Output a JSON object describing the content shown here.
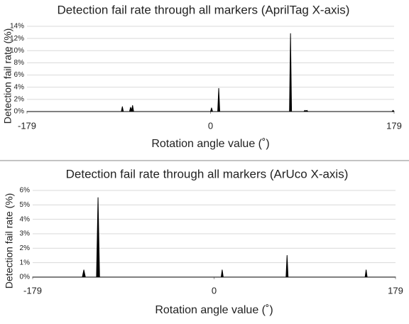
{
  "chart_data": [
    {
      "type": "area",
      "title": "Detection fail rate through all markers (AprilTag X-axis)",
      "xlabel": "Rotation angle value (˚)",
      "ylabel": "Detection fail rate (%)",
      "x": [
        -179,
        -87,
        -86,
        -85,
        -79,
        -78,
        -77,
        -76,
        -75,
        0,
        1,
        2,
        7,
        8,
        9,
        77,
        78,
        79,
        91,
        92,
        93,
        94,
        95,
        177,
        178,
        179
      ],
      "values": [
        0,
        0,
        0.8,
        0,
        0,
        0.7,
        0.2,
        1.0,
        0,
        0,
        0.6,
        0,
        0,
        3.8,
        0,
        0,
        12.8,
        0,
        0,
        0.2,
        0.1,
        0.2,
        0,
        0,
        0.2,
        0
      ],
      "color": "#000000",
      "xlim": [
        -179,
        179
      ],
      "xticks": [
        -179,
        0,
        179
      ],
      "ylim": [
        0,
        14
      ],
      "yticks": [
        {
          "value": 0,
          "label": "0%"
        },
        {
          "value": 2,
          "label": "2%"
        },
        {
          "value": 4,
          "label": "4%"
        },
        {
          "value": 6,
          "label": "6%"
        },
        {
          "value": 8,
          "label": "8%"
        },
        {
          "value": 10,
          "label": "10%"
        },
        {
          "value": 12,
          "label": "12%"
        },
        {
          "value": 14,
          "label": "14%"
        }
      ],
      "grid": true
    },
    {
      "type": "area",
      "title": "Detection fail rate through all markers (ArUco X-axis)",
      "xlabel": "Rotation angle value (˚)",
      "ylabel": "Detection fail rate (%)",
      "x": [
        -179,
        -130,
        -128.5,
        -127,
        -116,
        -114.5,
        -113,
        7,
        8,
        9,
        71,
        72,
        73,
        149,
        150,
        151,
        179
      ],
      "values": [
        0,
        0,
        0.5,
        0,
        0,
        5.5,
        0,
        0,
        0.5,
        0,
        0,
        1.5,
        0,
        0,
        0.5,
        0,
        0
      ],
      "color": "#000000",
      "xlim": [
        -179,
        179
      ],
      "xticks": [
        -179,
        0,
        179
      ],
      "ylim": [
        0,
        6
      ],
      "yticks": [
        {
          "value": 0,
          "label": "0%"
        },
        {
          "value": 1,
          "label": "1%"
        },
        {
          "value": 2,
          "label": "2%"
        },
        {
          "value": 3,
          "label": "3%"
        },
        {
          "value": 4,
          "label": "4%"
        },
        {
          "value": 5,
          "label": "5%"
        },
        {
          "value": 6,
          "label": "6%"
        }
      ],
      "grid": true
    }
  ]
}
